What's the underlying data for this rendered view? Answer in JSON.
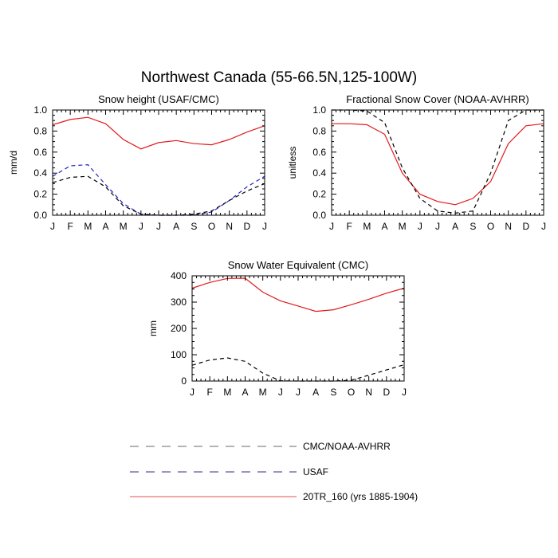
{
  "title": "Northwest Canada (55-66.5N,125-100W)",
  "colors": {
    "model": "#e31a1c",
    "usaf": "#1f1fcc",
    "obs": "#000000",
    "legend_obs": "#888888",
    "legend_usaf": "#5a5a99",
    "legend_model": "#f07070"
  },
  "legend": [
    {
      "label": "CMC/NOAA-AVHRR",
      "color": "#888888",
      "dash": true
    },
    {
      "label": "USAF",
      "color": "#5a5a99",
      "dash": true
    },
    {
      "label": "20TR_160 (yrs 1885-1904)",
      "color": "#f07070",
      "dash": false
    }
  ],
  "chart_data": [
    {
      "type": "line",
      "title": "Snow height (USAF/CMC)",
      "xlabel": "",
      "ylabel": "mm/d",
      "categories": [
        "J",
        "F",
        "M",
        "A",
        "M",
        "J",
        "J",
        "A",
        "S",
        "O",
        "N",
        "D",
        "J"
      ],
      "ylim": [
        0,
        1.0
      ],
      "yticks": [
        0.0,
        0.2,
        0.4,
        0.6,
        0.8,
        1.0
      ],
      "ytick_labels": [
        "0.0",
        "0.2",
        "0.4",
        "0.6",
        "0.8",
        "1.0"
      ],
      "series": [
        {
          "name": "20TR_160 (yrs 1885-1904)",
          "color": "#e31a1c",
          "dash": false,
          "values": [
            0.86,
            0.91,
            0.93,
            0.87,
            0.72,
            0.63,
            0.69,
            0.71,
            0.68,
            0.67,
            0.72,
            0.79,
            0.85
          ]
        },
        {
          "name": "USAF",
          "color": "#1f1fcc",
          "dash": true,
          "values": [
            0.37,
            0.47,
            0.48,
            0.29,
            0.11,
            0.01,
            0.0,
            0.0,
            0.0,
            0.03,
            0.14,
            0.27,
            0.37
          ]
        },
        {
          "name": "CMC/NOAA-AVHRR",
          "color": "#000000",
          "dash": true,
          "values": [
            0.31,
            0.36,
            0.37,
            0.27,
            0.09,
            0.01,
            0.0,
            0.0,
            0.01,
            0.04,
            0.14,
            0.23,
            0.3
          ]
        }
      ]
    },
    {
      "type": "line",
      "title": "Fractional Snow Cover (NOAA-AVHRR)",
      "xlabel": "",
      "ylabel": "unitless",
      "categories": [
        "J",
        "F",
        "M",
        "A",
        "M",
        "J",
        "J",
        "A",
        "S",
        "O",
        "N",
        "D",
        "J"
      ],
      "ylim": [
        0,
        1.0
      ],
      "yticks": [
        0.0,
        0.2,
        0.4,
        0.6,
        0.8,
        1.0
      ],
      "ytick_labels": [
        "0.0",
        "0.2",
        "0.4",
        "0.6",
        "0.8",
        "1.0"
      ],
      "series": [
        {
          "name": "20TR_160 (yrs 1885-1904)",
          "color": "#e31a1c",
          "dash": false,
          "values": [
            0.87,
            0.87,
            0.86,
            0.77,
            0.4,
            0.2,
            0.13,
            0.1,
            0.16,
            0.32,
            0.68,
            0.85,
            0.87
          ]
        },
        {
          "name": "CMC/NOAA-AVHRR",
          "color": "#000000",
          "dash": true,
          "values": [
            1.0,
            1.0,
            0.99,
            0.88,
            0.45,
            0.16,
            0.04,
            0.02,
            0.04,
            0.4,
            0.9,
            1.0,
            1.0
          ]
        }
      ]
    },
    {
      "type": "line",
      "title": "Snow Water Equivalent (CMC)",
      "xlabel": "",
      "ylabel": "mm",
      "categories": [
        "J",
        "F",
        "M",
        "A",
        "M",
        "J",
        "J",
        "A",
        "S",
        "O",
        "N",
        "D",
        "J"
      ],
      "ylim": [
        0,
        400
      ],
      "yticks": [
        0,
        100,
        200,
        300,
        400
      ],
      "ytick_labels": [
        "0",
        "100",
        "200",
        "300",
        "400"
      ],
      "series": [
        {
          "name": "20TR_160 (yrs 1885-1904)",
          "color": "#e31a1c",
          "dash": false,
          "values": [
            353,
            375,
            390,
            391,
            338,
            305,
            285,
            265,
            271,
            290,
            311,
            334,
            353
          ]
        },
        {
          "name": "CMC/NOAA-AVHRR",
          "color": "#000000",
          "dash": true,
          "values": [
            60,
            80,
            88,
            75,
            30,
            1,
            0,
            0,
            0,
            3,
            22,
            42,
            62
          ]
        }
      ]
    }
  ]
}
